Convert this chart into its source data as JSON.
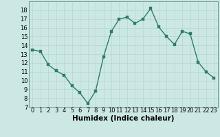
{
  "x": [
    0,
    1,
    2,
    3,
    4,
    5,
    6,
    7,
    8,
    9,
    10,
    11,
    12,
    13,
    14,
    15,
    16,
    17,
    18,
    19,
    20,
    21,
    22,
    23
  ],
  "y": [
    13.5,
    13.3,
    11.8,
    11.1,
    10.6,
    9.4,
    8.6,
    7.4,
    8.8,
    12.7,
    15.6,
    17.0,
    17.2,
    16.5,
    17.0,
    18.2,
    16.1,
    15.0,
    14.1,
    15.6,
    15.3,
    12.1,
    11.0,
    10.3
  ],
  "xlabel": "Humidex (Indice chaleur)",
  "ylim": [
    7,
    19
  ],
  "xlim": [
    -0.5,
    23.5
  ],
  "yticks": [
    7,
    8,
    9,
    10,
    11,
    12,
    13,
    14,
    15,
    16,
    17,
    18
  ],
  "xticks": [
    0,
    1,
    2,
    3,
    4,
    5,
    6,
    7,
    8,
    9,
    10,
    11,
    12,
    13,
    14,
    15,
    16,
    17,
    18,
    19,
    20,
    21,
    22,
    23
  ],
  "line_color": "#2d7a6e",
  "marker_color": "#2d7a6e",
  "bg_color": "#cce8e4",
  "grid_color": "#b8d4d0",
  "xlabel_fontsize": 7.5,
  "tick_fontsize": 6.0,
  "line_width": 1.0,
  "marker_size": 2.5
}
